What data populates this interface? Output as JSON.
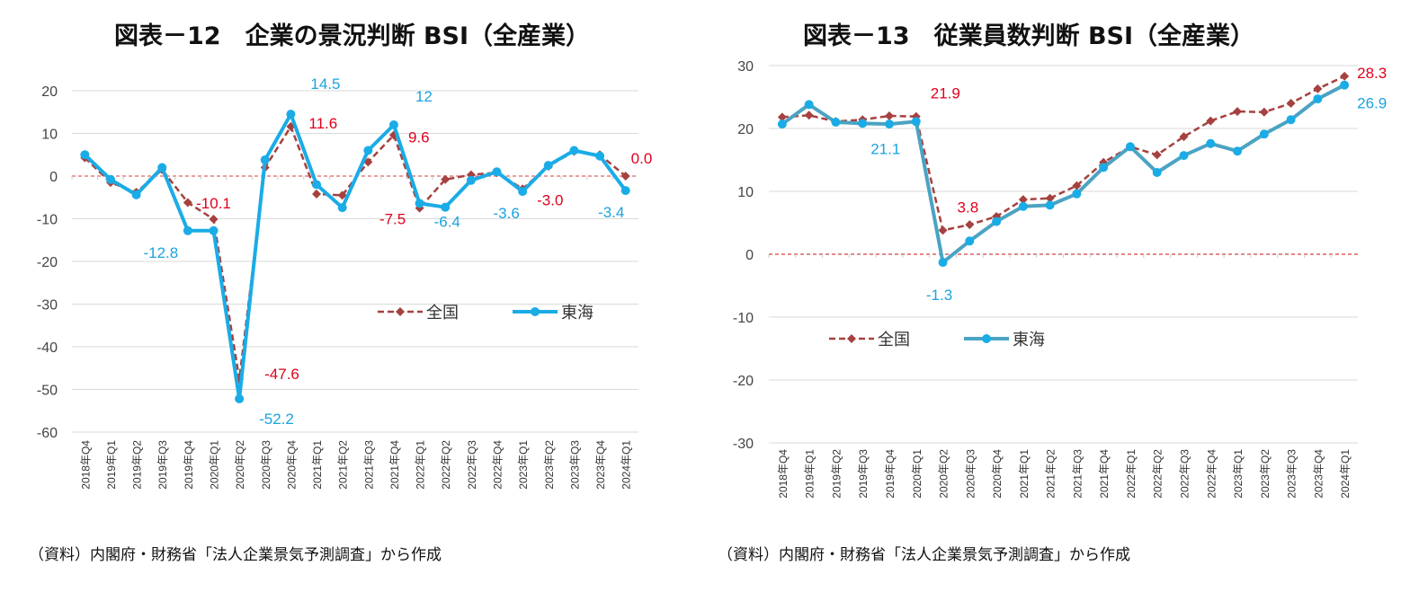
{
  "chart_data": [
    {
      "type": "line",
      "title": "図表－12　企業の景況判断 BSI（全産業）",
      "source": "（資料）内閣府・財務省「法人企業景気予測調査」から作成",
      "categories": [
        "2018年Q4",
        "2019年Q1",
        "2019年Q2",
        "2019年Q3",
        "2019年Q4",
        "2020年Q1",
        "2020年Q2",
        "2020年Q3",
        "2020年Q4",
        "2021年Q1",
        "2021年Q2",
        "2021年Q3",
        "2021年Q4",
        "2022年Q1",
        "2022年Q2",
        "2022年Q3",
        "2022年Q4",
        "2023年Q1",
        "2023年Q2",
        "2023年Q3",
        "2023年Q4",
        "2024年Q1"
      ],
      "ylim": [
        -60,
        20
      ],
      "yticks": [
        "20",
        "10",
        "0",
        "-10",
        "-20",
        "-30",
        "-40",
        "-50",
        "-60"
      ],
      "grid": true,
      "legend_position": "center-right",
      "series": [
        {
          "name": "全国",
          "color": "#A5413F",
          "style": "dashed",
          "marker": "diamond",
          "values": [
            4.3,
            -1.5,
            -3.8,
            1.5,
            -6.2,
            -10.1,
            -47.6,
            2.0,
            11.6,
            -4.2,
            -4.5,
            3.3,
            9.6,
            -7.5,
            -0.8,
            0.3,
            0.8,
            -3.0,
            2.3,
            5.8,
            5.0,
            0.0
          ]
        },
        {
          "name": "東海",
          "color": "#1AACE6",
          "style": "solid",
          "marker": "circle",
          "values": [
            5.0,
            -0.8,
            -4.4,
            2.0,
            -12.8,
            -12.8,
            -52.2,
            3.8,
            14.5,
            -2.0,
            -7.4,
            6.0,
            12.0,
            -6.4,
            -7.3,
            -1.0,
            1.0,
            -3.6,
            2.5,
            6.0,
            4.7,
            -3.4
          ]
        }
      ],
      "data_labels": [
        {
          "series": 0,
          "index": 5,
          "text": "-10.1"
        },
        {
          "series": 0,
          "index": 6,
          "text": "-47.6"
        },
        {
          "series": 0,
          "index": 8,
          "text": "11.6"
        },
        {
          "series": 0,
          "index": 12,
          "text": "9.6"
        },
        {
          "series": 0,
          "index": 13,
          "text": "-7.5"
        },
        {
          "series": 0,
          "index": 17,
          "text": "-3.0"
        },
        {
          "series": 0,
          "index": 21,
          "text": "0.0"
        },
        {
          "series": 1,
          "index": 4,
          "text": "-12.8"
        },
        {
          "series": 1,
          "index": 6,
          "text": "-52.2"
        },
        {
          "series": 1,
          "index": 8,
          "text": "14.5"
        },
        {
          "series": 1,
          "index": 12,
          "text": "12"
        },
        {
          "series": 1,
          "index": 13,
          "text": "-6.4"
        },
        {
          "series": 1,
          "index": 17,
          "text": "-3.6"
        },
        {
          "series": 1,
          "index": 21,
          "text": "-3.4"
        }
      ]
    },
    {
      "type": "line",
      "title": "図表－13　従業員数判断 BSI（全産業）",
      "source": "（資料）内閣府・財務省「法人企業景気予測調査」から作成",
      "categories": [
        "2018年Q4",
        "2019年Q1",
        "2019年Q2",
        "2019年Q3",
        "2019年Q4",
        "2020年Q1",
        "2020年Q2",
        "2020年Q3",
        "2020年Q4",
        "2021年Q1",
        "2021年Q2",
        "2021年Q3",
        "2021年Q4",
        "2022年Q1",
        "2022年Q2",
        "2022年Q3",
        "2022年Q4",
        "2023年Q1",
        "2023年Q2",
        "2023年Q3",
        "2023年Q4",
        "2024年Q1"
      ],
      "ylim": [
        -30,
        30
      ],
      "yticks": [
        "30",
        "20",
        "10",
        "0",
        "-10",
        "-20",
        "-30"
      ],
      "grid": true,
      "legend_position": "center-left",
      "series": [
        {
          "name": "全国",
          "color": "#A5413F",
          "style": "dashed",
          "marker": "diamond",
          "values": [
            21.8,
            22.1,
            21.1,
            21.4,
            22.0,
            21.9,
            3.8,
            4.7,
            6.0,
            8.7,
            8.9,
            10.9,
            14.6,
            17.1,
            15.8,
            18.7,
            21.2,
            22.7,
            22.6,
            24.0,
            26.3,
            28.3
          ]
        },
        {
          "name": "東海",
          "color": "#4BA3C3",
          "marker_color": "#1AACE6",
          "style": "solid",
          "marker": "circle",
          "values": [
            20.7,
            23.8,
            21.0,
            20.8,
            20.7,
            21.1,
            -1.3,
            2.1,
            5.2,
            7.6,
            7.8,
            9.6,
            13.8,
            17.1,
            13.0,
            15.7,
            17.6,
            16.4,
            19.1,
            21.4,
            24.7,
            26.9
          ]
        }
      ],
      "data_labels": [
        {
          "series": 0,
          "index": 5,
          "text": "21.9"
        },
        {
          "series": 0,
          "index": 6,
          "text": "3.8"
        },
        {
          "series": 0,
          "index": 21,
          "text": "28.3"
        },
        {
          "series": 1,
          "index": 5,
          "text": "21.1"
        },
        {
          "series": 1,
          "index": 6,
          "text": "-1.3"
        },
        {
          "series": 1,
          "index": 21,
          "text": "26.9"
        }
      ]
    }
  ],
  "label_colors": {
    "national": "#E0001B",
    "tokai": "#1AA3DF"
  }
}
